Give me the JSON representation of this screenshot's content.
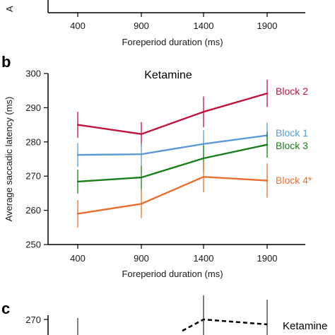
{
  "panels": {
    "a_partial": {
      "xlabel": "Foreperiod duration (ms)",
      "x_ticks": [
        "400",
        "900",
        "1400",
        "1900"
      ],
      "ylabel_fragment": "A"
    },
    "b": {
      "letter": "b"
    },
    "c": {
      "letter": "c"
    }
  },
  "chart_data": [
    {
      "type": "line",
      "title": "Ketamine",
      "xlabel": "Foreperiod duration (ms)",
      "ylabel": "Average saccadic latency (ms)",
      "x": [
        400,
        900,
        1400,
        1900
      ],
      "x_tick_labels": [
        "400",
        "900",
        "1400",
        "1900"
      ],
      "y_ticks": [
        250,
        260,
        270,
        280,
        290,
        300
      ],
      "y_tick_labels": [
        "250",
        "260",
        "270",
        "280",
        "290",
        "300"
      ],
      "ylim": [
        250,
        300
      ],
      "grid": false,
      "legend": "direct labels at line ends (right)",
      "series": [
        {
          "name": "Block 2",
          "color": "#c0143c",
          "values": [
            285.0,
            282.3,
            288.8,
            294.2
          ],
          "err": [
            3.8,
            3.5,
            4.5,
            4.0
          ]
        },
        {
          "name": "Block 1",
          "color": "#5b9bd5",
          "values": [
            276.2,
            276.4,
            279.4,
            281.9
          ],
          "err": [
            3.5,
            3.2,
            4.0,
            3.8
          ]
        },
        {
          "name": "Block 3",
          "color": "#1a7f1a",
          "values": [
            268.4,
            269.6,
            275.2,
            279.2
          ],
          "err": [
            3.5,
            3.5,
            3.8,
            3.8
          ]
        },
        {
          "name": "Block 4*",
          "color": "#e87030",
          "values": [
            259.0,
            261.9,
            269.8,
            268.7
          ],
          "err": [
            4.0,
            4.2,
            4.5,
            5.0
          ]
        }
      ]
    },
    {
      "type": "line",
      "partial": true,
      "x": [
        400,
        900,
        1400,
        1900
      ],
      "y_tick_labels_visible": [
        "270"
      ],
      "series": [
        {
          "name": "Ketamine",
          "style": "dashed",
          "color": "#000000",
          "values": [
            null,
            null,
            270.0,
            269.0
          ]
        }
      ]
    }
  ]
}
